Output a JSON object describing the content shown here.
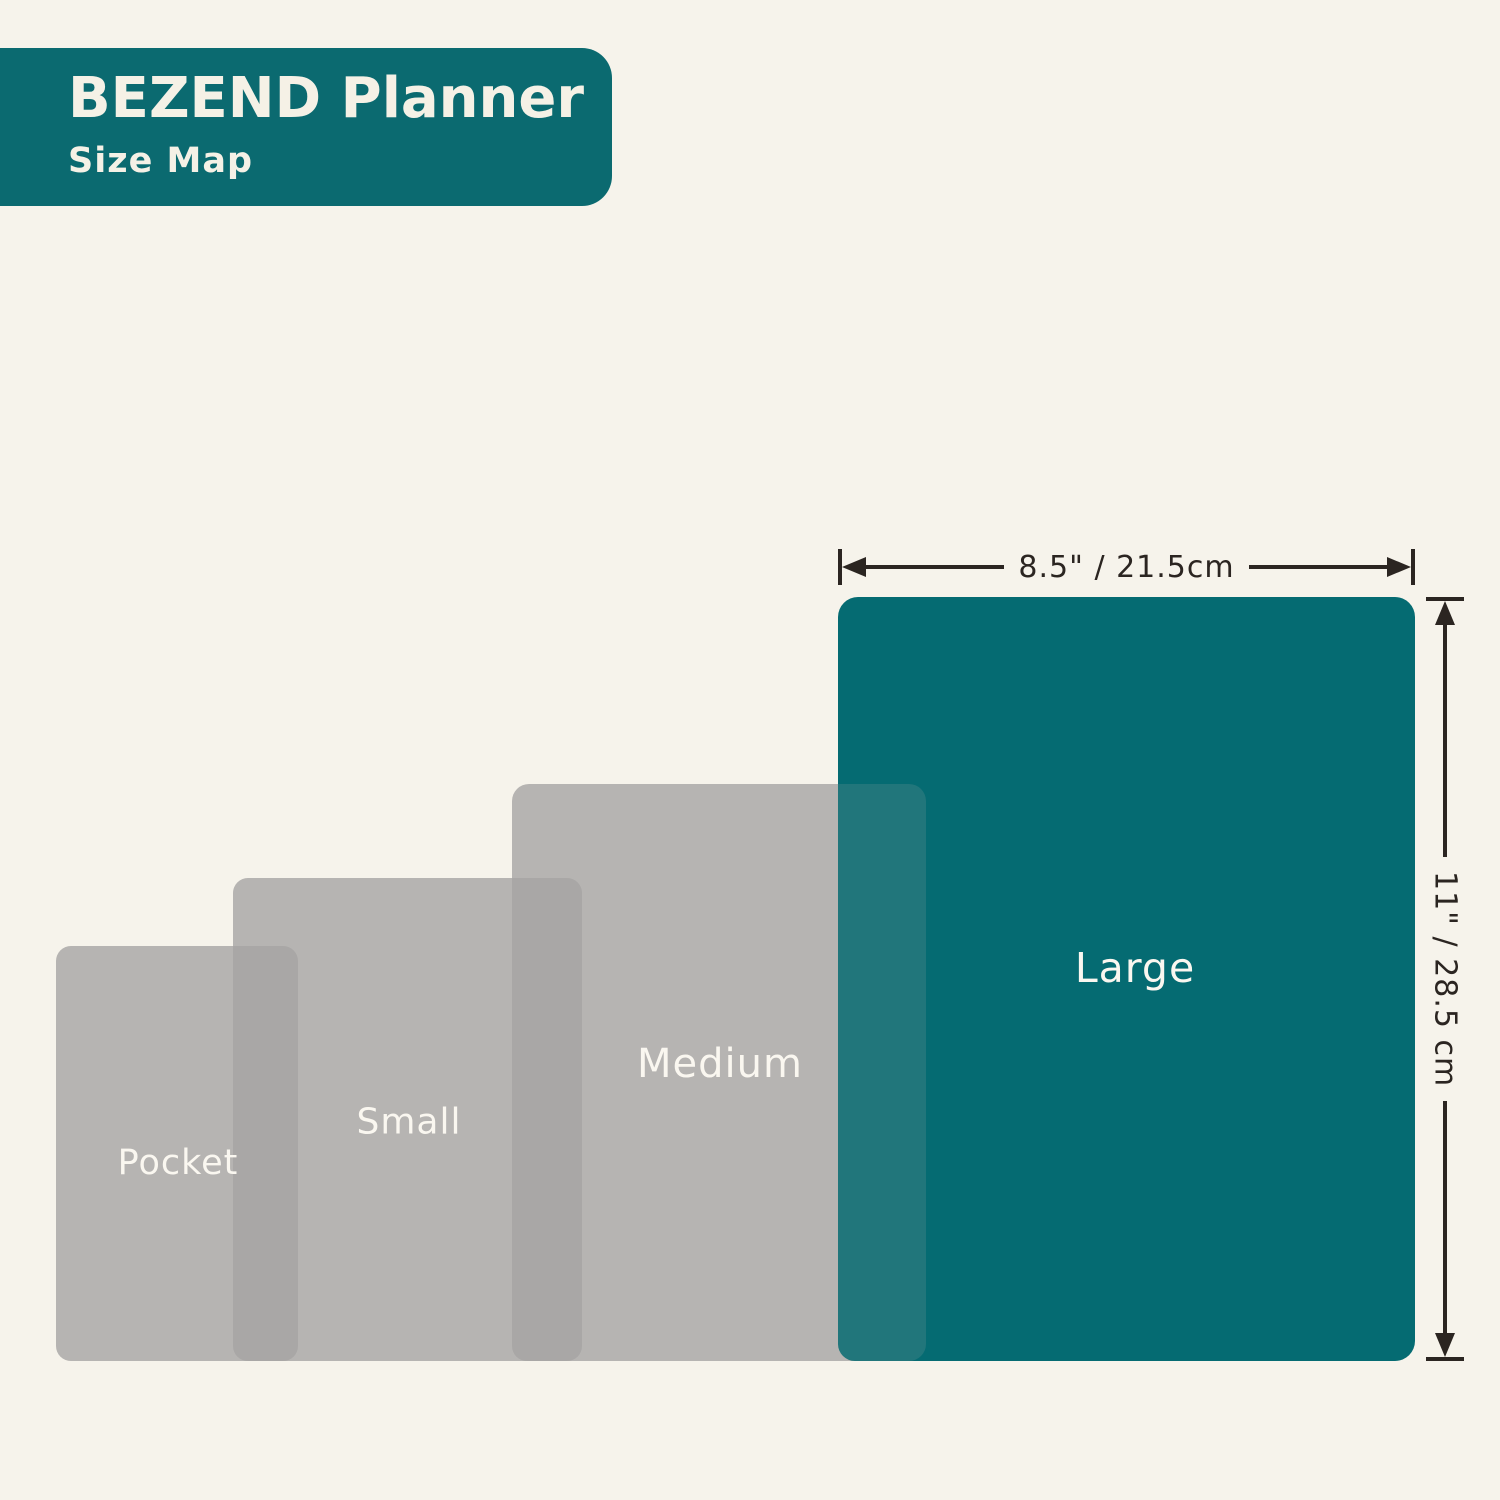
{
  "header": {
    "title": "BEZEND Planner",
    "subtitle": "Size Map"
  },
  "planner_sizes": [
    {
      "label": "Pocket"
    },
    {
      "label": "Small"
    },
    {
      "label": "Medium"
    },
    {
      "label": "Large"
    }
  ],
  "dimensions": {
    "width_label": "8.5\" / 21.5cm",
    "height_label": "11\" / 28.5 cm"
  },
  "colors": {
    "background": "#F6F3EB",
    "teal": "#056B72",
    "teal_gray_overlap": "#21767B",
    "gray": "#B6B4B2",
    "gray_gray_overlap": "#A9A7A6",
    "dimension_ink": "#2B2521",
    "label_text": "#FAF7F0",
    "header_background": "#0B6A70",
    "header_text": "#F5F1E6"
  }
}
